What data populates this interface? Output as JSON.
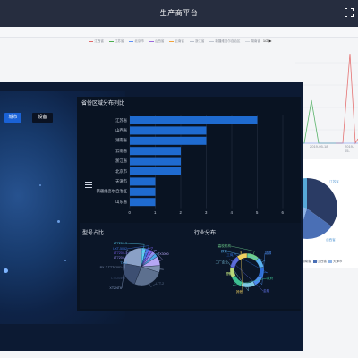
{
  "header": {
    "title": "生产商平台"
  },
  "background": {
    "legend": [
      "江西省",
      "江苏省",
      "北京市",
      "山西省",
      "云南省",
      "浙江省",
      "新疆维吾尔自治区",
      "湖南省"
    ],
    "legend_colors": [
      "#e06a6a",
      "#4caf50",
      "#5b8ff9",
      "#9c6ade",
      "#f2a33a",
      "#b9c0cc",
      "#c0c6d0",
      "#d0d4da"
    ],
    "page_indicator": "1/2",
    "dates": [
      "2019-05-18",
      "2019-05-"
    ],
    "pie_legend": [
      "湖南省",
      "山西省",
      "天津市"
    ],
    "pie_colors": [
      "#2a3b64",
      "#4a6fb5",
      "#8fb4e6",
      "#57a8d8"
    ],
    "pie_labels": [
      "江苏省",
      "山西省"
    ]
  },
  "buttons": {
    "city": "城市",
    "device": "设备"
  },
  "chart_data": [
    {
      "type": "bar",
      "title": "省份区域分布列比",
      "categories": [
        "江苏省",
        "山西省",
        "湖南省",
        "云南省",
        "浙江省",
        "北京市",
        "天津市",
        "新疆维吾尔自治区",
        "山东省"
      ],
      "values": [
        5,
        3,
        3,
        2,
        2,
        2,
        1,
        1,
        1
      ],
      "xlim": [
        0,
        6
      ],
      "ticks": [
        "0",
        "1",
        "2",
        "3",
        "4",
        "5",
        "6"
      ],
      "bar_color": "#1f6bd0",
      "orientation": "horizontal"
    },
    {
      "type": "pie",
      "title": "型号占比",
      "labels": [
        "LT7204-3",
        "LXT-5052",
        "LT7204-1",
        "LT7204-2",
        "TX-2",
        "TX3000",
        "PX-2-TTTC001",
        "LTT-2",
        "LT7204-C",
        "XTZNT6"
      ],
      "values": [
        4,
        3,
        3,
        3,
        3,
        8,
        6,
        26,
        22,
        22
      ],
      "colors": [
        "#5ad1f0",
        "#3f74e0",
        "#7a5de8",
        "#9a8df0",
        "#4fa6e8",
        "#b6a6f5",
        "#7d8fb0",
        "#5d708f",
        "#3d4f72",
        "#8aa0c6"
      ]
    },
    {
      "type": "pie",
      "title": "行业分布",
      "labels": [
        "高校机构",
        "教育",
        "工商户",
        "能源",
        "工厂企业",
        "政府",
        "运输",
        "金融",
        "其他"
      ],
      "values": [
        12,
        10,
        10,
        10,
        14,
        12,
        10,
        12,
        10
      ],
      "colors": [
        "#6fd08c",
        "#5ab1ef",
        "#2f6fd8",
        "#4d8ef0",
        "#7ec8e3",
        "#3dbf91",
        "#b8d87a",
        "#5b6bd9",
        "#f0d060"
      ],
      "donut": true
    }
  ]
}
